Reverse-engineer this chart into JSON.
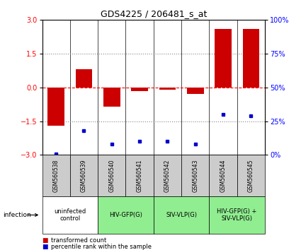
{
  "title": "GDS4225 / 206481_s_at",
  "samples": [
    "GSM560538",
    "GSM560539",
    "GSM560540",
    "GSM560541",
    "GSM560542",
    "GSM560543",
    "GSM560544",
    "GSM560545"
  ],
  "transformed_count": [
    -1.7,
    0.8,
    -0.85,
    -0.15,
    -0.1,
    -0.3,
    2.6,
    2.6
  ],
  "percentile_rank": [
    1,
    18,
    8,
    10,
    10,
    8,
    30,
    29
  ],
  "groups": [
    {
      "label": "uninfected\ncontrol",
      "start": 0,
      "end": 2,
      "color": "#ffffff"
    },
    {
      "label": "HIV-GFP(G)",
      "start": 2,
      "end": 4,
      "color": "#90ee90"
    },
    {
      "label": "SIV-VLP(G)",
      "start": 4,
      "end": 6,
      "color": "#90ee90"
    },
    {
      "label": "HIV-GFP(G) +\nSIV-VLP(G)",
      "start": 6,
      "end": 8,
      "color": "#90ee90"
    }
  ],
  "bar_color": "#cc0000",
  "dot_color": "#0000cc",
  "ylim_left": [
    -3,
    3
  ],
  "ylim_right": [
    0,
    100
  ],
  "yticks_left": [
    -3,
    -1.5,
    0,
    1.5,
    3
  ],
  "yticks_right": [
    0,
    25,
    50,
    75,
    100
  ],
  "legend_red_label": "transformed count",
  "legend_blue_label": "percentile rank within the sample",
  "infection_label": "infection",
  "background_color": "#ffffff",
  "sample_box_color": "#cccccc"
}
